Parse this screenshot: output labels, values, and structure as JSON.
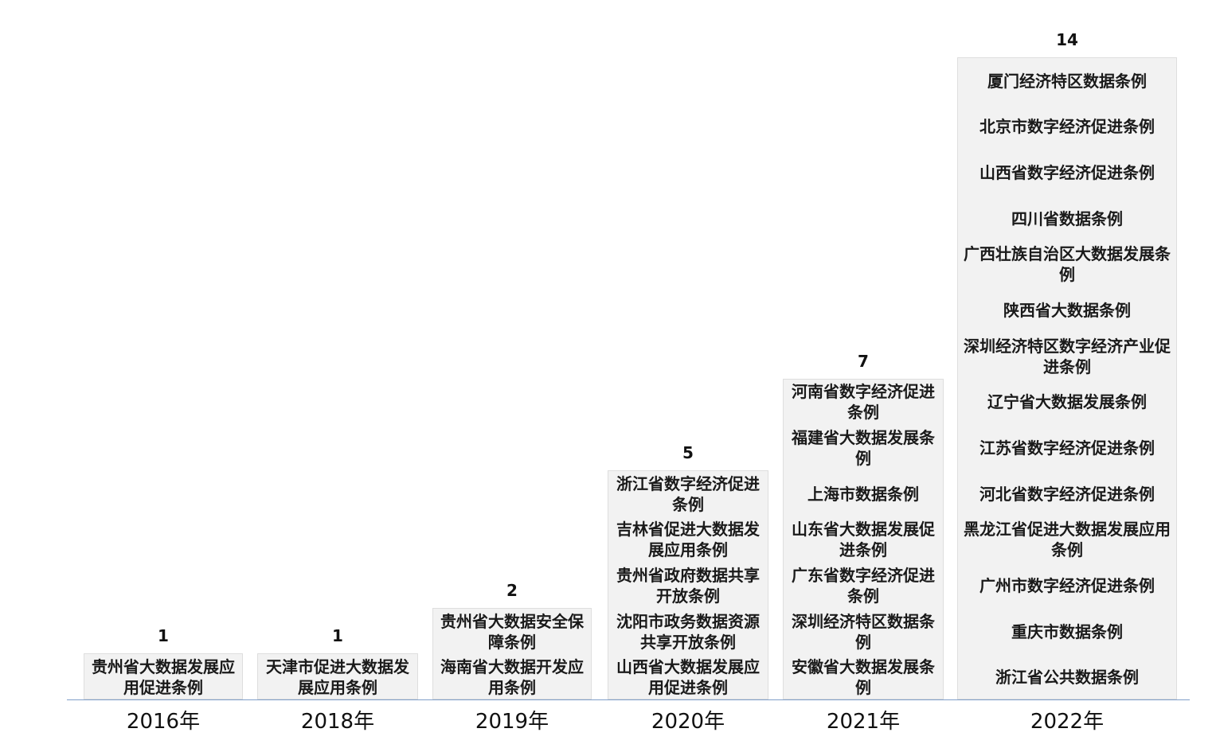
{
  "chart_data": {
    "type": "bar",
    "categories": [
      "2016年",
      "2018年",
      "2019年",
      "2020年",
      "2021年",
      "2022年"
    ],
    "values": [
      1,
      1,
      2,
      5,
      7,
      14
    ],
    "ylim": [
      0,
      14
    ],
    "grid": false,
    "bar_color": "#f2f2f2",
    "axis_color": "#7f9ec9",
    "bar_items": [
      [
        "贵州省大数据发展应用促进条例"
      ],
      [
        "天津市促进大数据发展应用条例"
      ],
      [
        "贵州省大数据安全保障条例",
        "海南省大数据开发应用条例"
      ],
      [
        "浙江省数字经济促进条例",
        "吉林省促进大数据发展应用条例",
        "贵州省政府数据共享开放条例",
        "沈阳市政务数据资源共享开放条例",
        "山西省大数据发展应用促进条例"
      ],
      [
        "河南省数字经济促进条例",
        "福建省大数据发展条例",
        "上海市数据条例",
        "山东省大数据发展促进条例",
        "广东省数字经济促进条例",
        "深圳经济特区数据条例",
        "安徽省大数据发展条例"
      ],
      [
        "厦门经济特区数据条例",
        "北京市数字经济促进条例",
        "山西省数字经济促进条例",
        "四川省数据条例",
        "广西壮族自治区大数据发展条例",
        "陕西省大数据条例",
        "深圳经济特区数字经济产业促进条例",
        "辽宁省大数据发展条例",
        "江苏省数字经济促进条例",
        "河北省数字经济促进条例",
        "黑龙江省促进大数据发展应用条例",
        "广州市数字经济促进条例",
        "重庆市数据条例",
        "浙江省公共数据条例"
      ]
    ]
  }
}
